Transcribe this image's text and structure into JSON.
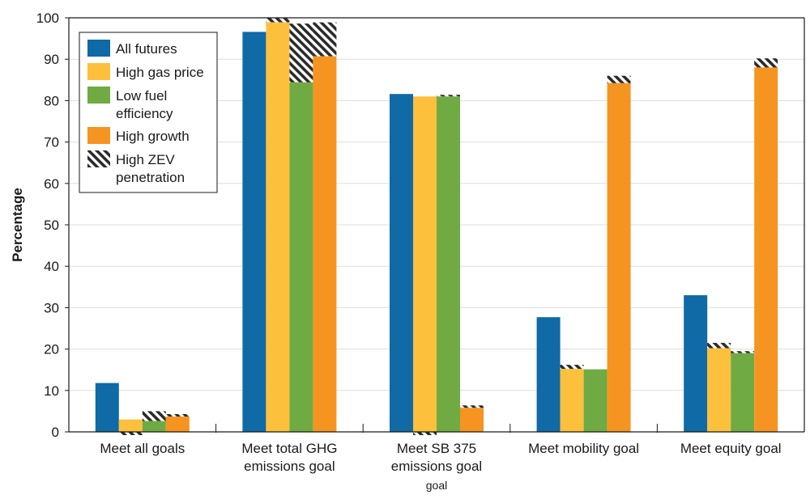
{
  "chart_data": {
    "type": "bar",
    "ylabel": "Percentage",
    "xlabel": "",
    "ylim": [
      0,
      100
    ],
    "yticks": [
      0,
      10,
      20,
      30,
      40,
      50,
      60,
      70,
      80,
      90,
      100
    ],
    "grid": true,
    "legend_position": "top-left",
    "categories": [
      {
        "lines": [
          "Meet all goals"
        ],
        "sub": ""
      },
      {
        "lines": [
          "Meet total GHG",
          "emissions goal"
        ],
        "sub": ""
      },
      {
        "lines": [
          "Meet SB 375",
          "emissions goal"
        ],
        "sub": "goal"
      },
      {
        "lines": [
          "Meet mobility goal"
        ],
        "sub": ""
      },
      {
        "lines": [
          "Meet equity goal"
        ],
        "sub": ""
      }
    ],
    "series": [
      {
        "name": "All futures",
        "color": "#0f6aa6",
        "values": [
          11.8,
          96.6,
          81.6,
          27.7,
          33.0
        ]
      },
      {
        "name": "High gas price",
        "color": "#fcc03c",
        "values": [
          3.0,
          98.9,
          81.0,
          15.2,
          20.2
        ]
      },
      {
        "name": "Low fuel efficiency",
        "color": "#6fab42",
        "values": [
          2.6,
          84.4,
          81.0,
          15.1,
          19.0
        ]
      },
      {
        "name": "High growth",
        "color": "#f69421",
        "values": [
          3.7,
          90.7,
          5.8,
          84.2,
          88.0
        ]
      }
    ],
    "zev_overlay": {
      "name": "High ZEV penetration",
      "values": [
        [
          null,
          0.0,
          5.0,
          4.3
        ],
        [
          null,
          100.0,
          98.6,
          98.9
        ],
        [
          null,
          0.0,
          81.4,
          6.4
        ],
        [
          null,
          16.2,
          15.0,
          86.0
        ],
        [
          null,
          21.5,
          19.5,
          90.2
        ]
      ]
    },
    "legend": [
      {
        "lines": [
          "All futures"
        ],
        "color": "#0f6aa6",
        "hatched": false
      },
      {
        "lines": [
          "High gas price"
        ],
        "color": "#fcc03c",
        "hatched": false
      },
      {
        "lines": [
          "Low fuel",
          "efficiency"
        ],
        "color": "#6fab42",
        "hatched": false
      },
      {
        "lines": [
          "High growth"
        ],
        "color": "#f69421",
        "hatched": false
      },
      {
        "lines": [
          "High ZEV",
          "penetration"
        ],
        "color": "#ffffff",
        "hatched": true
      }
    ]
  }
}
